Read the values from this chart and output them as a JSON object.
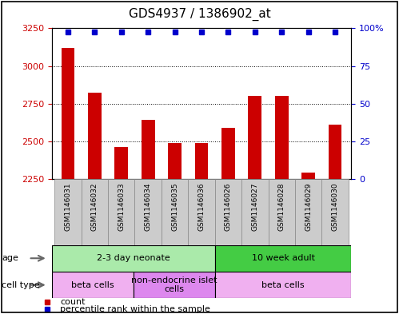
{
  "title": "GDS4937 / 1386902_at",
  "samples": [
    "GSM1146031",
    "GSM1146032",
    "GSM1146033",
    "GSM1146034",
    "GSM1146035",
    "GSM1146036",
    "GSM1146026",
    "GSM1146027",
    "GSM1146028",
    "GSM1146029",
    "GSM1146030"
  ],
  "counts": [
    3120,
    2820,
    2460,
    2640,
    2490,
    2490,
    2590,
    2800,
    2800,
    2290,
    2610
  ],
  "ylim_left": [
    2250,
    3250
  ],
  "ylim_right": [
    0,
    100
  ],
  "yticks_left": [
    2250,
    2500,
    2750,
    3000,
    3250
  ],
  "yticks_right": [
    0,
    25,
    50,
    75,
    100
  ],
  "bar_color": "#cc0000",
  "dot_color": "#0000cc",
  "age_groups": [
    {
      "label": "2-3 day neonate",
      "start": 0,
      "end": 6,
      "color": "#aaeaaa"
    },
    {
      "label": "10 week adult",
      "start": 6,
      "end": 11,
      "color": "#44cc44"
    }
  ],
  "cell_type_groups": [
    {
      "label": "beta cells",
      "start": 0,
      "end": 3,
      "color": "#f0b0f0"
    },
    {
      "label": "non-endocrine islet\ncells",
      "start": 3,
      "end": 6,
      "color": "#dd88ee"
    },
    {
      "label": "beta cells",
      "start": 6,
      "end": 11,
      "color": "#f0b0f0"
    }
  ],
  "legend_items": [
    {
      "color": "#cc0000",
      "label": "count"
    },
    {
      "color": "#0000cc",
      "label": "percentile rank within the sample"
    }
  ],
  "left_tick_color": "#cc0000",
  "right_tick_color": "#0000cc",
  "title_fontsize": 11,
  "tick_fontsize": 8,
  "sample_fontsize": 6.5,
  "label_fontsize": 8,
  "group_fontsize": 8,
  "legend_fontsize": 8,
  "sample_label_bg": "#cccccc",
  "outer_border_color": "#000000"
}
